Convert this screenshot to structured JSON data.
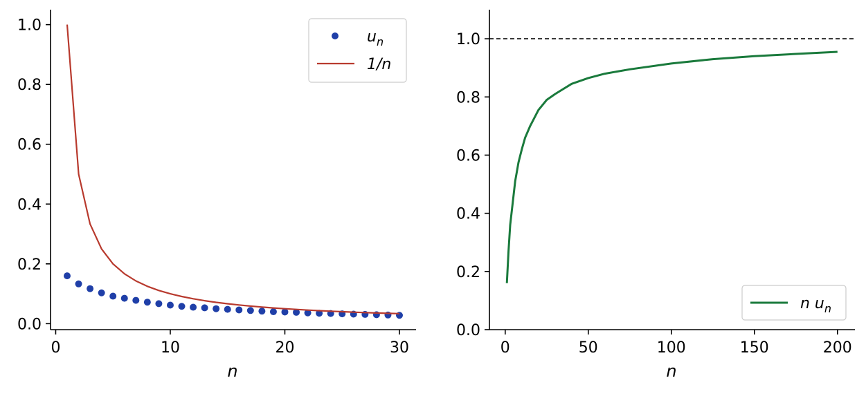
{
  "chart_data": [
    {
      "type": "line",
      "xlabel": "n",
      "ylabel": "",
      "xlim": [
        -0.45,
        31.45
      ],
      "ylim": [
        -0.02,
        1.05
      ],
      "xticks": [
        0,
        10,
        20,
        30
      ],
      "yticks": [
        0.0,
        0.2,
        0.4,
        0.6,
        0.8,
        1.0
      ],
      "xtick_labels": [
        "0",
        "10",
        "20",
        "30"
      ],
      "ytick_labels": [
        "0.0",
        "0.2",
        "0.4",
        "0.6",
        "0.8",
        "1.0"
      ],
      "grid": false,
      "legend_position": "top-right",
      "series": [
        {
          "name": "u_n",
          "label_main": "u",
          "label_sub": "n",
          "kind": "scatter",
          "color": "#1f3fa8",
          "x": [
            1,
            2,
            3,
            4,
            5,
            6,
            7,
            8,
            9,
            10,
            11,
            12,
            13,
            14,
            15,
            16,
            17,
            18,
            19,
            20,
            21,
            22,
            23,
            24,
            25,
            26,
            27,
            28,
            29,
            30
          ],
          "y": [
            0.16,
            0.133,
            0.117,
            0.103,
            0.092,
            0.085,
            0.078,
            0.072,
            0.067,
            0.062,
            0.058,
            0.055,
            0.053,
            0.05,
            0.048,
            0.046,
            0.044,
            0.042,
            0.04,
            0.039,
            0.038,
            0.036,
            0.035,
            0.034,
            0.033,
            0.032,
            0.031,
            0.03,
            0.029,
            0.028
          ]
        },
        {
          "name": "1/n",
          "label_main": "1/n",
          "kind": "line",
          "color": "#b83a2e",
          "x": [
            1,
            2,
            3,
            4,
            5,
            6,
            7,
            8,
            9,
            10,
            11,
            12,
            13,
            14,
            15,
            16,
            17,
            18,
            19,
            20,
            21,
            22,
            23,
            24,
            25,
            26,
            27,
            28,
            29,
            30
          ],
          "y": [
            1.0,
            0.5,
            0.3333,
            0.25,
            0.2,
            0.1667,
            0.1429,
            0.125,
            0.1111,
            0.1,
            0.0909,
            0.0833,
            0.0769,
            0.0714,
            0.0667,
            0.0625,
            0.0588,
            0.0556,
            0.0526,
            0.05,
            0.0476,
            0.0455,
            0.0435,
            0.0417,
            0.04,
            0.0385,
            0.037,
            0.0357,
            0.0345,
            0.0333
          ]
        }
      ]
    },
    {
      "type": "line",
      "xlabel": "n",
      "ylabel": "",
      "xlim": [
        -9.5,
        210.5
      ],
      "ylim": [
        0.0,
        1.1
      ],
      "xticks": [
        0,
        50,
        100,
        150,
        200
      ],
      "yticks": [
        0.0,
        0.2,
        0.4,
        0.6,
        0.8,
        1.0
      ],
      "xtick_labels": [
        "0",
        "50",
        "100",
        "150",
        "200"
      ],
      "ytick_labels": [
        "0.0",
        "0.2",
        "0.4",
        "0.6",
        "0.8",
        "1.0"
      ],
      "grid": false,
      "legend_position": "bottom-right",
      "reference_line": {
        "y": 1.0,
        "style": "dashed",
        "color": "#000000"
      },
      "series": [
        {
          "name": "n u_n",
          "label_main": "n u",
          "label_sub": "n",
          "kind": "line",
          "color": "#1a7a3c",
          "x": [
            1,
            2,
            3,
            4,
            5,
            6,
            8,
            10,
            12,
            15,
            20,
            25,
            30,
            40,
            50,
            60,
            75,
            100,
            125,
            150,
            175,
            200
          ],
          "y": [
            0.16,
            0.27,
            0.36,
            0.41,
            0.46,
            0.51,
            0.575,
            0.62,
            0.66,
            0.7,
            0.755,
            0.79,
            0.81,
            0.845,
            0.865,
            0.88,
            0.895,
            0.915,
            0.93,
            0.94,
            0.948,
            0.955
          ]
        }
      ]
    }
  ]
}
